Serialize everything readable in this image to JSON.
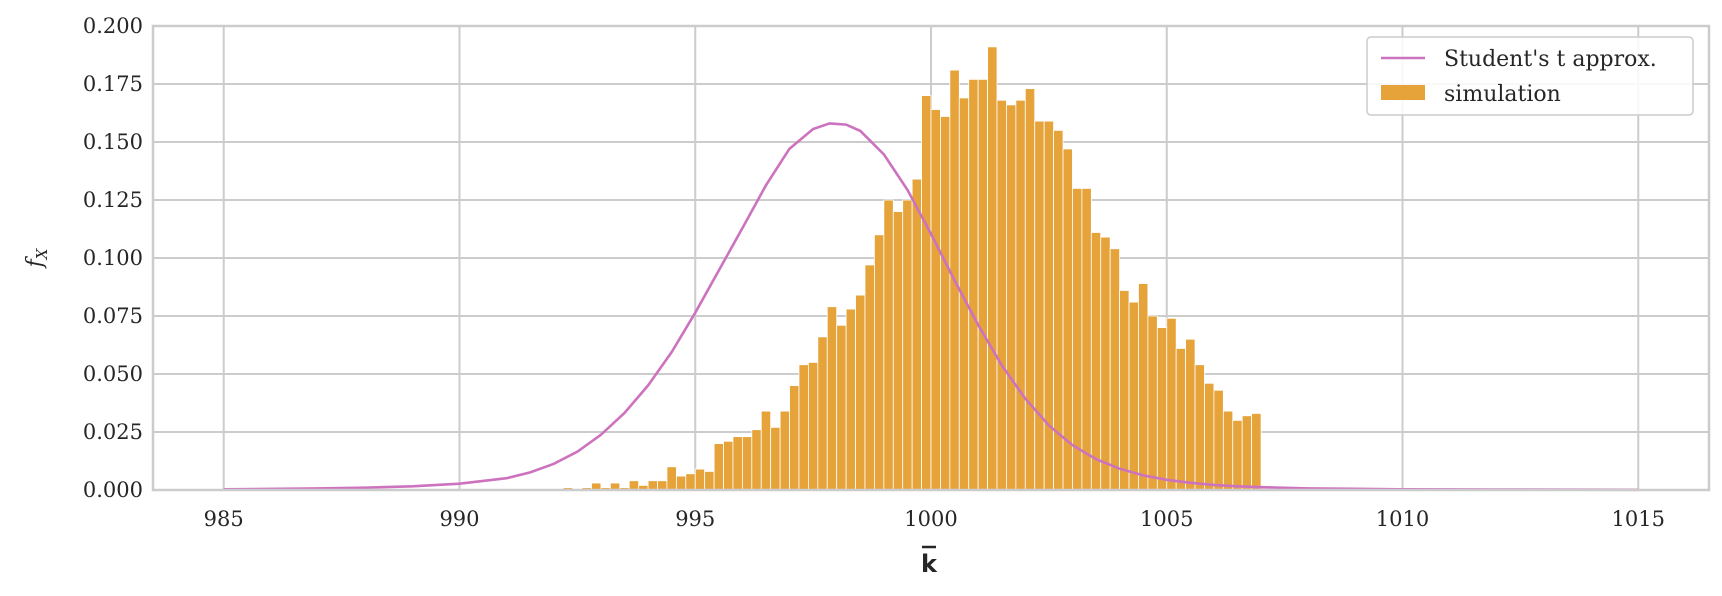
{
  "chart_data": {
    "type": "bar",
    "title": "",
    "xlabel": "k",
    "ylabel": "f",
    "ylabel_subscript": "X",
    "xlim": [
      983.5,
      1016.5
    ],
    "ylim": [
      0,
      0.2
    ],
    "xticks": [
      985,
      990,
      995,
      1000,
      1005,
      1010,
      1015
    ],
    "xtick_labels": [
      "985",
      "990",
      "995",
      "1000",
      "1005",
      "1010",
      "1015"
    ],
    "yticks": [
      0,
      0.025,
      0.05,
      0.075,
      0.1,
      0.125,
      0.15,
      0.175,
      0.2
    ],
    "ytick_labels": [
      "0.000",
      "0.025",
      "0.050",
      "0.075",
      "0.100",
      "0.125",
      "0.150",
      "0.175",
      "0.200"
    ],
    "grid": true,
    "legend_position": "top-right",
    "series": [
      {
        "name": "Student's t approx.",
        "type": "line",
        "color": "#cc72bf",
        "x": [
          985,
          987,
          988,
          989,
          990,
          991,
          991.5,
          992,
          992.5,
          993,
          993.5,
          994,
          994.5,
          995,
          995.5,
          996,
          996.5,
          997,
          997.5,
          997.85,
          998.2,
          998.5,
          999,
          999.5,
          1000,
          1000.5,
          1001,
          1001.5,
          1002,
          1002.5,
          1003,
          1003.5,
          1004,
          1004.5,
          1005,
          1005.5,
          1006,
          1006.5,
          1007,
          1008,
          1009,
          1010,
          1012,
          1015
        ],
        "values": [
          0.0003,
          0.0007,
          0.001,
          0.0016,
          0.0027,
          0.0051,
          0.0076,
          0.0113,
          0.0165,
          0.0238,
          0.0332,
          0.0451,
          0.0595,
          0.0764,
          0.0946,
          0.1129,
          0.1314,
          0.1471,
          0.1556,
          0.158,
          0.1575,
          0.1548,
          0.1447,
          0.1294,
          0.1104,
          0.0903,
          0.0711,
          0.0538,
          0.0394,
          0.0278,
          0.0193,
          0.0133,
          0.0092,
          0.0063,
          0.0044,
          0.0031,
          0.0022,
          0.0016,
          0.0012,
          0.0007,
          0.0005,
          0.0003,
          0.0002,
          0.0001
        ]
      },
      {
        "name": "simulation",
        "type": "histogram",
        "color": "#e5a33a",
        "bin_width": 0.2,
        "x": [
          992.3,
          992.5,
          992.7,
          992.9,
          993.1,
          993.3,
          993.5,
          993.7,
          993.9,
          994.1,
          994.3,
          994.5,
          994.7,
          994.9,
          995.1,
          995.3,
          995.5,
          995.7,
          995.9,
          996.1,
          996.3,
          996.5,
          996.7,
          996.9,
          997.1,
          997.3,
          997.5,
          997.7,
          997.9,
          998.1,
          998.3,
          998.5,
          998.7,
          998.9,
          999.1,
          999.3,
          999.5,
          999.7,
          999.9,
          1000.1,
          1000.3,
          1000.5,
          1000.7,
          1000.9,
          1001.1,
          1001.3,
          1001.5,
          1001.7,
          1001.9,
          1002.1,
          1002.3,
          1002.5,
          1002.7,
          1002.9,
          1003.1,
          1003.3,
          1003.5,
          1003.7,
          1003.9,
          1004.1,
          1004.3,
          1004.5,
          1004.7,
          1004.9,
          1005.1,
          1005.3,
          1005.5,
          1005.7,
          1005.9,
          1006.1,
          1006.3,
          1006.5,
          1006.7,
          1006.9
        ],
        "values": [
          0.001,
          0,
          0.001,
          0.003,
          0.001,
          0.003,
          0.001,
          0.004,
          0.002,
          0.004,
          0.004,
          0.01,
          0.006,
          0.007,
          0.009,
          0.008,
          0.02,
          0.021,
          0.023,
          0.023,
          0.026,
          0.034,
          0.027,
          0.034,
          0.045,
          0.054,
          0.055,
          0.066,
          0.079,
          0.071,
          0.078,
          0.084,
          0.097,
          0.11,
          0.125,
          0.12,
          0.125,
          0.134,
          0.17,
          0.164,
          0.161,
          0.181,
          0.169,
          0.177,
          0.177,
          0.191,
          0.168,
          0.166,
          0.168,
          0.173,
          0.159,
          0.159,
          0.155,
          0.147,
          0.13,
          0.13,
          0.111,
          0.109,
          0.104,
          0.086,
          0.081,
          0.089,
          0.075,
          0.07,
          0.074,
          0.061,
          0.065,
          0.054,
          0.046,
          0.043,
          0.034,
          0.03,
          0.032,
          0.033
        ]
      }
    ]
  }
}
